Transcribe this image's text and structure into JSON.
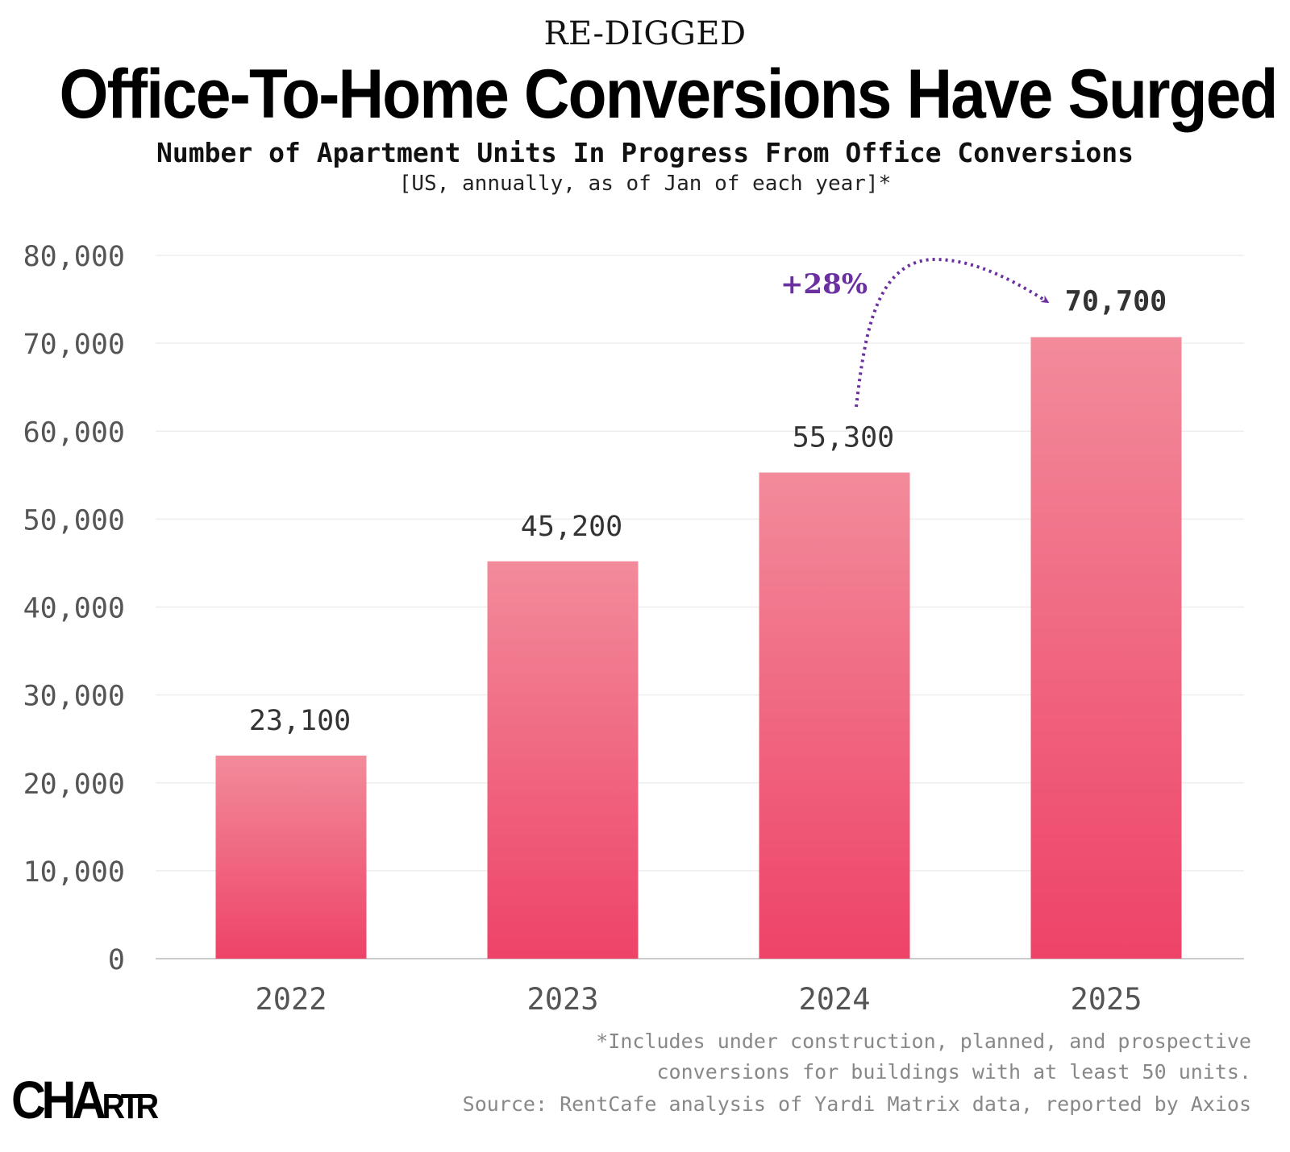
{
  "header": {
    "kicker": "RE-DIGGED",
    "title": "Office-To-Home Conversions Have Surged",
    "subtitle": "Number of Apartment Units In Progress From Office Conversions",
    "subnote": "[US, annually, as of Jan of each year]*"
  },
  "chart_data": {
    "type": "bar",
    "categories": [
      "2022",
      "2023",
      "2024",
      "2025"
    ],
    "values": [
      23100,
      45200,
      55300,
      70700
    ],
    "data_labels": [
      "23,100",
      "45,200",
      "55,300",
      "70,700"
    ],
    "ylim": [
      0,
      80000
    ],
    "yticks": [
      0,
      10000,
      20000,
      30000,
      40000,
      50000,
      60000,
      70000,
      80000
    ],
    "ytick_labels": [
      "0",
      "10,000",
      "20,000",
      "30,000",
      "40,000",
      "50,000",
      "60,000",
      "70,000",
      "80,000"
    ],
    "grid": true,
    "annotation": {
      "text": "+28%",
      "from": "2024",
      "to": "2025"
    },
    "colors": {
      "bar_top": "#f28b9b",
      "bar_bottom": "#ee4368",
      "annotation": "#6a2fa0",
      "grid": "#eeeeee",
      "axis_text": "#555555"
    }
  },
  "footer": {
    "note_line1": "*Includes under construction, planned, and prospective",
    "note_line2": "conversions for buildings with at least 50 units.",
    "source": "Source: RentCafe analysis of Yardi Matrix data, reported by Axios",
    "logo": "CHARTR"
  }
}
